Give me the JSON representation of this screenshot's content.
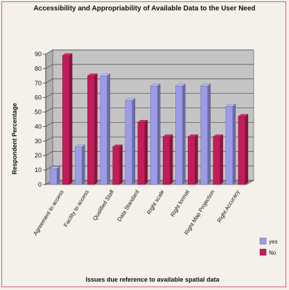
{
  "chart_data": {
    "type": "bar",
    "title": "Accessibility and Appropriability of Available Data to the User Need",
    "xlabel": "Issues due reference to available spatial data",
    "ylabel": "Respondent Percentage",
    "categories": [
      "Agreement to access",
      "Facility to access",
      "Qualified Staff",
      "Data Standard",
      "Right scale",
      "Right format",
      "Right Map Projection",
      "Right Accuracy"
    ],
    "series": [
      {
        "name": "yes",
        "color": "#9b9be8",
        "values": [
          11,
          26,
          75,
          58,
          68,
          68,
          68,
          54
        ]
      },
      {
        "name": "No",
        "color": "#c21c5a",
        "values": [
          89,
          75,
          26,
          43,
          33,
          33,
          33,
          47
        ]
      }
    ],
    "yticks": [
      0,
      10,
      20,
      30,
      40,
      50,
      60,
      70,
      80,
      90
    ],
    "ylim": [
      0,
      90
    ],
    "grid": true,
    "legend": "right"
  }
}
